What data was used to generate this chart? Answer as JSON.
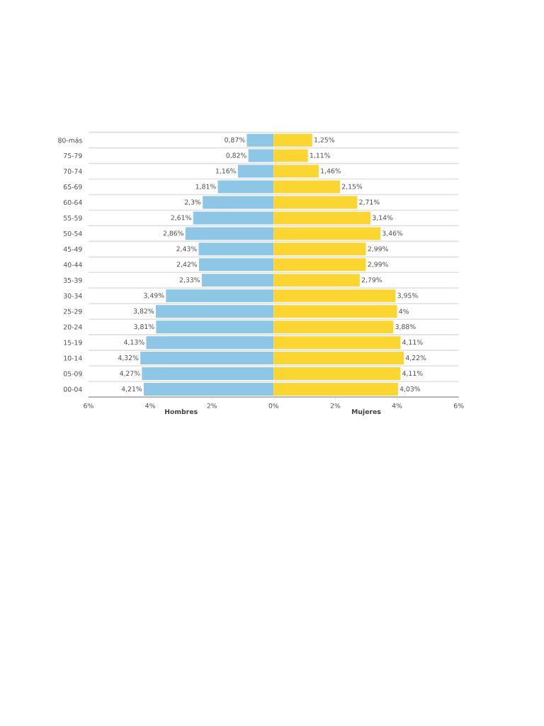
{
  "chart_data": [
    {
      "type": "bar",
      "orientation": "horizontal",
      "xlabel": "Hombres",
      "color": "#8ec6e6",
      "categories": [
        "80-más",
        "75-79",
        "70-74",
        "65-69",
        "60-64",
        "55-59",
        "50-54",
        "45-49",
        "40-44",
        "35-39",
        "30-34",
        "25-29",
        "20-24",
        "15-19",
        "10-14",
        "05-09",
        "00-04"
      ],
      "values": [
        0.87,
        0.82,
        1.16,
        1.81,
        2.3,
        2.61,
        2.86,
        2.43,
        2.42,
        2.33,
        3.49,
        3.82,
        3.81,
        4.13,
        4.32,
        4.27,
        4.21
      ],
      "value_labels": [
        "0,87%",
        "0,82%",
        "1,16%",
        "1,81%",
        "2,3%",
        "2,61%",
        "2,86%",
        "2,43%",
        "2,42%",
        "2,33%",
        "3,49%",
        "3,82%",
        "3,81%",
        "4,13%",
        "4,32%",
        "4,27%",
        "4,21%"
      ],
      "xlim": [
        6,
        0
      ],
      "xticks": [
        {
          "value": 6,
          "label": "6%"
        },
        {
          "value": 4,
          "label": "4%"
        },
        {
          "value": 2,
          "label": "2%"
        },
        {
          "value": 0,
          "label": "0%"
        }
      ],
      "grid": "y"
    },
    {
      "type": "bar",
      "orientation": "horizontal",
      "xlabel": "Mujeres",
      "color": "#fcd630",
      "categories": [
        null,
        null,
        null,
        null,
        null,
        null,
        null,
        null,
        null,
        null,
        null,
        null,
        null,
        null,
        null,
        null,
        null
      ],
      "values": [
        1.25,
        1.11,
        1.46,
        2.15,
        2.71,
        3.14,
        3.46,
        2.99,
        2.99,
        2.79,
        3.95,
        4,
        3.88,
        4.11,
        4.22,
        4.11,
        4.03
      ],
      "value_labels": [
        "1,25%",
        "1,11%",
        "1,46%",
        "2,15%",
        "2,71%",
        "3,14%",
        "3,46%",
        "2,99%",
        "2,99%",
        "2,79%",
        "3,95%",
        "4%",
        "3,88%",
        "4,11%",
        "4,22%",
        "4,11%",
        "4,03%"
      ],
      "xlim": [
        0,
        6
      ],
      "xticks": [
        {
          "value": 2,
          "label": "2%"
        },
        {
          "value": 4,
          "label": "4%"
        },
        {
          "value": 6,
          "label": "6%"
        }
      ],
      "grid": "y"
    }
  ]
}
